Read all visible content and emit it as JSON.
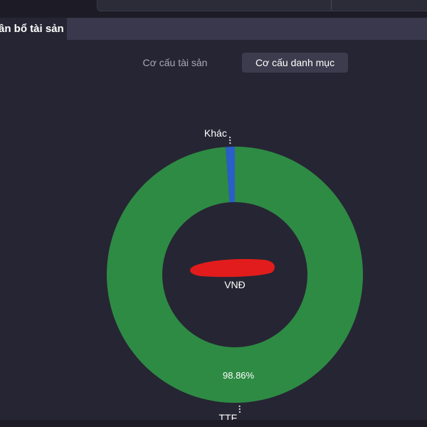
{
  "header": {
    "title": "ân bổ tài sản"
  },
  "tabs": [
    {
      "label": "Cơ cấu tài sản",
      "active": false
    },
    {
      "label": "Cơ cấu danh mục",
      "active": true
    }
  ],
  "center": {
    "unit": "VNĐ",
    "value_redacted": true
  },
  "colors": {
    "ttf": "#2e8b44",
    "khac": "#2a5ec8",
    "redaction": "#e21c1c"
  },
  "chart_data": {
    "type": "pie",
    "donut": true,
    "categories": [
      "TTF",
      "Khác"
    ],
    "values": [
      98.86,
      1.14
    ],
    "data_labels": [
      "98.86%",
      ""
    ],
    "title": ""
  }
}
